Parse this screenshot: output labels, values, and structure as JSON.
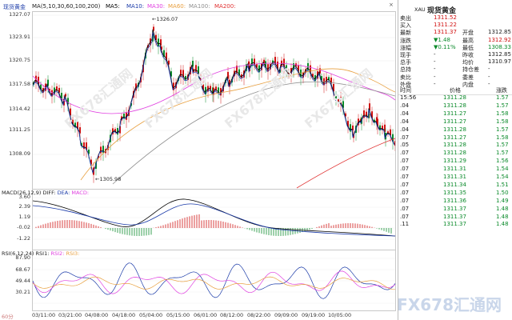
{
  "header": {
    "symbol": "现货黄金",
    "period": "60分",
    "ma_label": "MA(5,10,30,60,100,200)",
    "ma_items": [
      {
        "label": "MA5:",
        "color": "#000000"
      },
      {
        "label": "MA10:",
        "color": "#1a3aa8"
      },
      {
        "label": "MA30:",
        "color": "#e040e0"
      },
      {
        "label": "MA60:",
        "color": "#e8a040"
      },
      {
        "label": "MA100:",
        "color": "#909090"
      },
      {
        "label": "MA200:",
        "color": "#e03030"
      }
    ],
    "close_icon": "×"
  },
  "price_axis": [
    "1327.07",
    "1323.91",
    "1320.75",
    "1317.58",
    "1314.42",
    "1311.25",
    "1308.09"
  ],
  "annotations": {
    "high": "1326.07",
    "low": "1305.98"
  },
  "macd": {
    "label": "MACD(26,12,9)",
    "diff": "DIFF:",
    "dea": "DEA:",
    "macd": "MACD:",
    "axis": [
      "3.60",
      "2.39",
      "1.19",
      "-0.02",
      "-1.22"
    ]
  },
  "rsi": {
    "label": "RSI(6,12,24)",
    "rsi1": "RSI1:",
    "rsi2": "RSI2:",
    "rsi3": "RSI3:",
    "axis": [
      "87.90",
      "68.67",
      "49.44",
      "30.21"
    ]
  },
  "x_axis": [
    "03/11:00",
    "03/21:00",
    "04/08:00",
    "04/18:00",
    "05/04:00",
    "05/15:00",
    "06/01:00",
    "08/12:00",
    "08/22:00",
    "09/09:00",
    "09/19:00",
    "10/05:00"
  ],
  "sidebar": {
    "code": "XAU",
    "name": "现货黄金",
    "quote_rows": [
      {
        "label": "卖出",
        "value": "1311.52",
        "vclass": "red",
        "label2": "",
        "value2": "",
        "v2class": ""
      },
      {
        "label": "买入",
        "value": "1311.22",
        "vclass": "red",
        "label2": "",
        "value2": "",
        "v2class": ""
      },
      {
        "label": "最新",
        "value": "1311.37",
        "vclass": "red",
        "label2": "开盘",
        "value2": "1312.85",
        "v2class": ""
      },
      {
        "label": "涨跌",
        "value": "▼1.48",
        "vclass": "green",
        "label2": "最高",
        "value2": "1312.92",
        "v2class": "red"
      },
      {
        "label": "涨幅",
        "value": "▼0.11%",
        "vclass": "green",
        "label2": "最低",
        "value2": "1308.33",
        "v2class": "green"
      },
      {
        "label": "现手",
        "value": "-",
        "vclass": "",
        "label2": "昨收",
        "value2": "1312.85",
        "v2class": ""
      },
      {
        "label": "总手",
        "value": "-",
        "vclass": "",
        "label2": "均价",
        "value2": "1310.97",
        "v2class": ""
      },
      {
        "label": "总持",
        "value": "-",
        "vclass": "",
        "label2": "持仓差",
        "value2": "-",
        "v2class": ""
      },
      {
        "label": "卖比",
        "value": "-",
        "vclass": "",
        "label2": "委差",
        "value2": "-",
        "v2class": ""
      },
      {
        "label": "外盘",
        "value": "-",
        "vclass": "",
        "label2": "内盘",
        "value2": "-",
        "v2class": ""
      }
    ],
    "tick_header": {
      "time": "时间",
      "price": "价格",
      "change": "涨跌"
    },
    "ticks": [
      {
        "time": "15:56",
        "price": "1311.28",
        "change": "1.57"
      },
      {
        "time": ".04",
        "price": "1311.28",
        "change": "1.57"
      },
      {
        "time": ".04",
        "price": "1311.27",
        "change": "1.58"
      },
      {
        "time": ".04",
        "price": "1311.27",
        "change": "1.58"
      },
      {
        "time": ".04",
        "price": "1311.28",
        "change": "1.57"
      },
      {
        "time": ".07",
        "price": "1311.27",
        "change": "1.58"
      },
      {
        "time": ".05",
        "price": "1311.28",
        "change": "1.57"
      },
      {
        "time": ".07",
        "price": "1311.28",
        "change": "1.57"
      },
      {
        "time": ".07",
        "price": "1311.29",
        "change": "1.56"
      },
      {
        "time": ".07",
        "price": "1311.31",
        "change": "1.54"
      },
      {
        "time": ".07",
        "price": "1311.31",
        "change": "1.54"
      },
      {
        "time": ".07",
        "price": "1311.34",
        "change": "1.51"
      },
      {
        "time": ".07",
        "price": "1311.35",
        "change": "1.50"
      },
      {
        "time": ".07",
        "price": "1311.36",
        "change": "1.49"
      },
      {
        "time": ".07",
        "price": "1311.37",
        "change": "1.48"
      },
      {
        "time": ".07",
        "price": "1311.37",
        "change": "1.48"
      },
      {
        "time": ".11",
        "price": "1311.37",
        "change": "1.48"
      }
    ]
  },
  "watermark": {
    "text": "FX678汇通网",
    "brand": "FX678汇通网"
  },
  "colors": {
    "up": "#d01010",
    "down": "#0a8a2a",
    "grid": "#e6e6e6"
  }
}
